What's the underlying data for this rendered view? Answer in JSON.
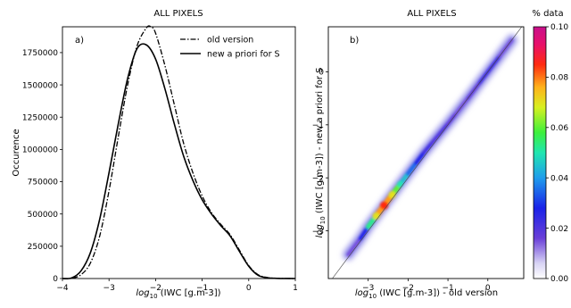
{
  "chart_data": [
    {
      "type": "line",
      "panel_label": "a)",
      "title": "ALL PIXELS",
      "xlabel_prefix": "log",
      "xlabel_sub": "10",
      "xlabel_rest": " (IWC [g.m-3])",
      "ylabel": "Occurence",
      "xlim": [
        -4,
        1
      ],
      "ylim": [
        0,
        1950000
      ],
      "xticks": [
        "−4",
        "−3",
        "−2",
        "−1",
        "0",
        "1"
      ],
      "xtick_values": [
        -4,
        -3,
        -2,
        -1,
        0,
        1
      ],
      "yticks": [
        "0",
        "250000",
        "500000",
        "750000",
        "1000000",
        "1250000",
        "1500000",
        "1750000"
      ],
      "ytick_values": [
        0,
        250000,
        500000,
        750000,
        1000000,
        1250000,
        1500000,
        1750000
      ],
      "legend_position": "top-right",
      "series": [
        {
          "name": "old version",
          "style": "dashdot",
          "x": [
            -4.0,
            -3.8,
            -3.6,
            -3.4,
            -3.2,
            -3.0,
            -2.8,
            -2.6,
            -2.4,
            -2.2,
            -2.1,
            -2.0,
            -1.8,
            -1.6,
            -1.4,
            -1.2,
            -1.0,
            -0.8,
            -0.6,
            -0.4,
            -0.2,
            0.0,
            0.2,
            0.4,
            0.6,
            1.0
          ],
          "y": [
            0,
            2000,
            30000,
            120000,
            330000,
            680000,
            1100000,
            1500000,
            1800000,
            1940000,
            1950000,
            1900000,
            1650000,
            1350000,
            1050000,
            820000,
            640000,
            510000,
            420000,
            340000,
            220000,
            100000,
            30000,
            8000,
            2000,
            0
          ]
        },
        {
          "name": "new a priori for S",
          "style": "solid",
          "x": [
            -4.0,
            -3.8,
            -3.6,
            -3.4,
            -3.2,
            -3.0,
            -2.8,
            -2.6,
            -2.4,
            -2.2,
            -2.0,
            -1.8,
            -1.6,
            -1.4,
            -1.2,
            -1.0,
            -0.8,
            -0.6,
            -0.4,
            -0.2,
            0.0,
            0.2,
            0.4,
            0.6,
            1.0
          ],
          "y": [
            0,
            5000,
            60000,
            200000,
            460000,
            820000,
            1200000,
            1550000,
            1780000,
            1810000,
            1700000,
            1470000,
            1200000,
            950000,
            760000,
            610000,
            500000,
            410000,
            330000,
            210000,
            95000,
            25000,
            6000,
            1500,
            0
          ]
        }
      ]
    },
    {
      "type": "heatmap",
      "panel_label": "b)",
      "title": "ALL PIXELS",
      "xlabel_prefix": "log",
      "xlabel_sub": "10",
      "xlabel_rest": " (IWC [g.m-3]) - old version",
      "ylabel_prefix": "log",
      "ylabel_sub": "10",
      "ylabel_rest": " (IWC [g.m-3]) - new a priori for S",
      "xlim": [
        -4,
        0.9
      ],
      "ylim": [
        -3.9,
        0.85
      ],
      "xticks": [
        "−3",
        "−2",
        "−1",
        "0"
      ],
      "xtick_values": [
        -3,
        -2,
        -1,
        0
      ],
      "yticks": [
        "−3",
        "−2",
        "−1",
        "0"
      ],
      "ytick_values": [
        -3,
        -2,
        -1,
        0
      ],
      "reference_line": "y = x",
      "density_ridge": {
        "x": [
          -3.5,
          -3.2,
          -3.0,
          -2.8,
          -2.6,
          -2.4,
          -2.2,
          -2.0,
          -1.8,
          -1.6,
          -1.4,
          -1.2,
          -1.0,
          -0.8,
          -0.5,
          -0.2,
          0.0,
          0.3,
          0.6
        ],
        "y": [
          -3.45,
          -3.15,
          -2.92,
          -2.72,
          -2.52,
          -2.32,
          -2.12,
          -1.92,
          -1.72,
          -1.52,
          -1.34,
          -1.16,
          -0.98,
          -0.79,
          -0.5,
          -0.2,
          0.0,
          0.3,
          0.6
        ],
        "peak": [
          0.01,
          0.02,
          0.035,
          0.07,
          0.085,
          0.07,
          0.05,
          0.04,
          0.03,
          0.025,
          0.02,
          0.02,
          0.02,
          0.015,
          0.015,
          0.02,
          0.025,
          0.02,
          0.01
        ]
      },
      "colorbar": {
        "label": "% data",
        "min": 0.0,
        "max": 0.1,
        "ticks": [
          "0.00",
          "0.02",
          "0.04",
          "0.06",
          "0.08",
          "0.10"
        ],
        "tick_values": [
          0.0,
          0.02,
          0.04,
          0.06,
          0.08,
          0.1
        ],
        "colormap": "rainbow (white-purple-blue-cyan-green-yellow-orange-red-magenta)"
      }
    }
  ]
}
